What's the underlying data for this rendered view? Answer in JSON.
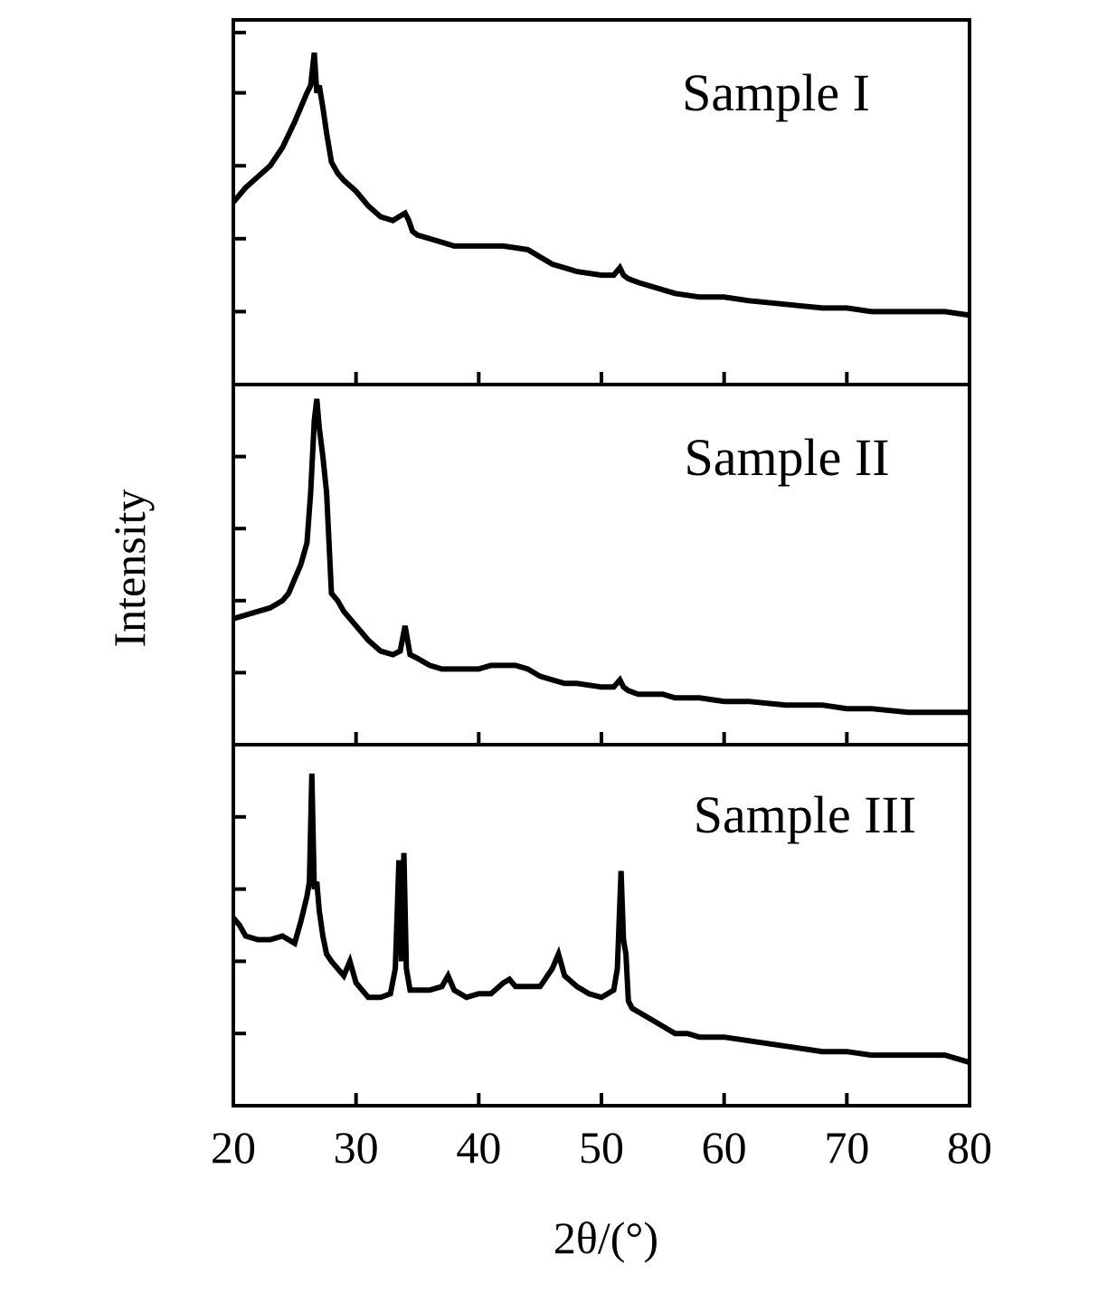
{
  "chart_data": {
    "type": "line",
    "ylabel": "Intensity",
    "xlabel": "2θ/(°)",
    "xlim": [
      20,
      80
    ],
    "x_ticks": [
      20,
      30,
      40,
      50,
      60,
      70,
      80
    ],
    "y_ticks": "unlabeled",
    "grid": false,
    "layout": "three vertically stacked panels sharing the x axis",
    "panels": [
      {
        "label": "Sample I",
        "ylim": [
          0,
          100
        ],
        "x": [
          20,
          21,
          22,
          23,
          24,
          25,
          25.5,
          26,
          26.3,
          26.6,
          26.8,
          27.0,
          27.3,
          27.6,
          28,
          28.5,
          29,
          30,
          31,
          32,
          33,
          33.5,
          34,
          34.3,
          34.6,
          35,
          36,
          37,
          38,
          39,
          40,
          42,
          44,
          45,
          46,
          47,
          48,
          50,
          51,
          51.5,
          51.8,
          52.2,
          53,
          55,
          56,
          58,
          60,
          62,
          65,
          68,
          70,
          72,
          75,
          78,
          80
        ],
        "values": [
          50,
          54,
          57,
          60,
          65,
          72,
          76,
          80,
          82,
          91,
          80,
          82,
          76,
          69,
          61,
          58,
          56,
          53,
          49,
          46,
          45,
          46,
          47,
          45,
          42,
          41,
          40,
          39,
          38,
          38,
          38,
          38,
          37,
          35,
          33,
          32,
          31,
          30,
          30,
          32,
          30,
          29,
          28,
          26,
          25,
          24,
          24,
          23,
          22,
          21,
          21,
          20,
          20,
          20,
          19
        ]
      },
      {
        "label": "Sample II",
        "ylim": [
          0,
          100
        ],
        "x": [
          20,
          21,
          22,
          23,
          24,
          24.5,
          25,
          25.5,
          26,
          26.3,
          26.6,
          26.8,
          27.0,
          27.3,
          27.6,
          28.0,
          28.5,
          29,
          30,
          31,
          32,
          33,
          33.6,
          34.0,
          34.4,
          35,
          36,
          37,
          38,
          39,
          40,
          41,
          42,
          43,
          44,
          45,
          46,
          47,
          48,
          50,
          51,
          51.5,
          51.8,
          52.2,
          53,
          55,
          56,
          58,
          60,
          62,
          65,
          68,
          70,
          72,
          75,
          78,
          80
        ],
        "values": [
          35,
          36,
          37,
          38,
          40,
          42,
          46,
          50,
          56,
          70,
          90,
          96,
          88,
          80,
          70,
          42,
          40,
          37,
          33,
          29,
          26,
          25,
          26,
          33,
          25,
          24,
          22,
          21,
          21,
          21,
          21,
          22,
          22,
          22,
          21,
          19,
          18,
          17,
          17,
          16,
          16,
          18,
          16,
          15,
          14,
          14,
          13,
          13,
          12,
          12,
          11,
          11,
          10,
          10,
          9,
          9,
          9
        ]
      },
      {
        "label": "Sample III",
        "ylim": [
          0,
          100
        ],
        "x": [
          20,
          20.5,
          21,
          22,
          23,
          24,
          25,
          25.5,
          26,
          26.2,
          26.4,
          26.6,
          26.8,
          27.0,
          27.3,
          27.6,
          28,
          28.5,
          29,
          29.5,
          30,
          31,
          32,
          32.8,
          33.2,
          33.5,
          33.7,
          33.9,
          34.1,
          34.4,
          35,
          36,
          37,
          37.5,
          38,
          39,
          40,
          41,
          42,
          42.5,
          43,
          44,
          45,
          46,
          46.5,
          47,
          48,
          49,
          50,
          51,
          51.3,
          51.6,
          51.8,
          52.0,
          52.2,
          52.5,
          53,
          54,
          55,
          56,
          57,
          58,
          60,
          62,
          64,
          66,
          68,
          70,
          72,
          74,
          76,
          78,
          80
        ],
        "values": [
          52,
          50,
          47,
          46,
          46,
          47,
          45,
          51,
          58,
          62,
          92,
          60,
          62,
          54,
          47,
          42,
          40,
          38,
          36,
          40,
          34,
          30,
          30,
          31,
          38,
          68,
          40,
          70,
          38,
          32,
          32,
          32,
          33,
          36,
          32,
          30,
          31,
          31,
          34,
          35,
          33,
          33,
          33,
          38,
          42,
          36,
          33,
          31,
          30,
          32,
          38,
          65,
          46,
          42,
          29,
          27,
          26,
          24,
          22,
          20,
          20,
          19,
          19,
          18,
          17,
          16,
          15,
          15,
          14,
          14,
          14,
          14,
          12
        ]
      }
    ]
  }
}
